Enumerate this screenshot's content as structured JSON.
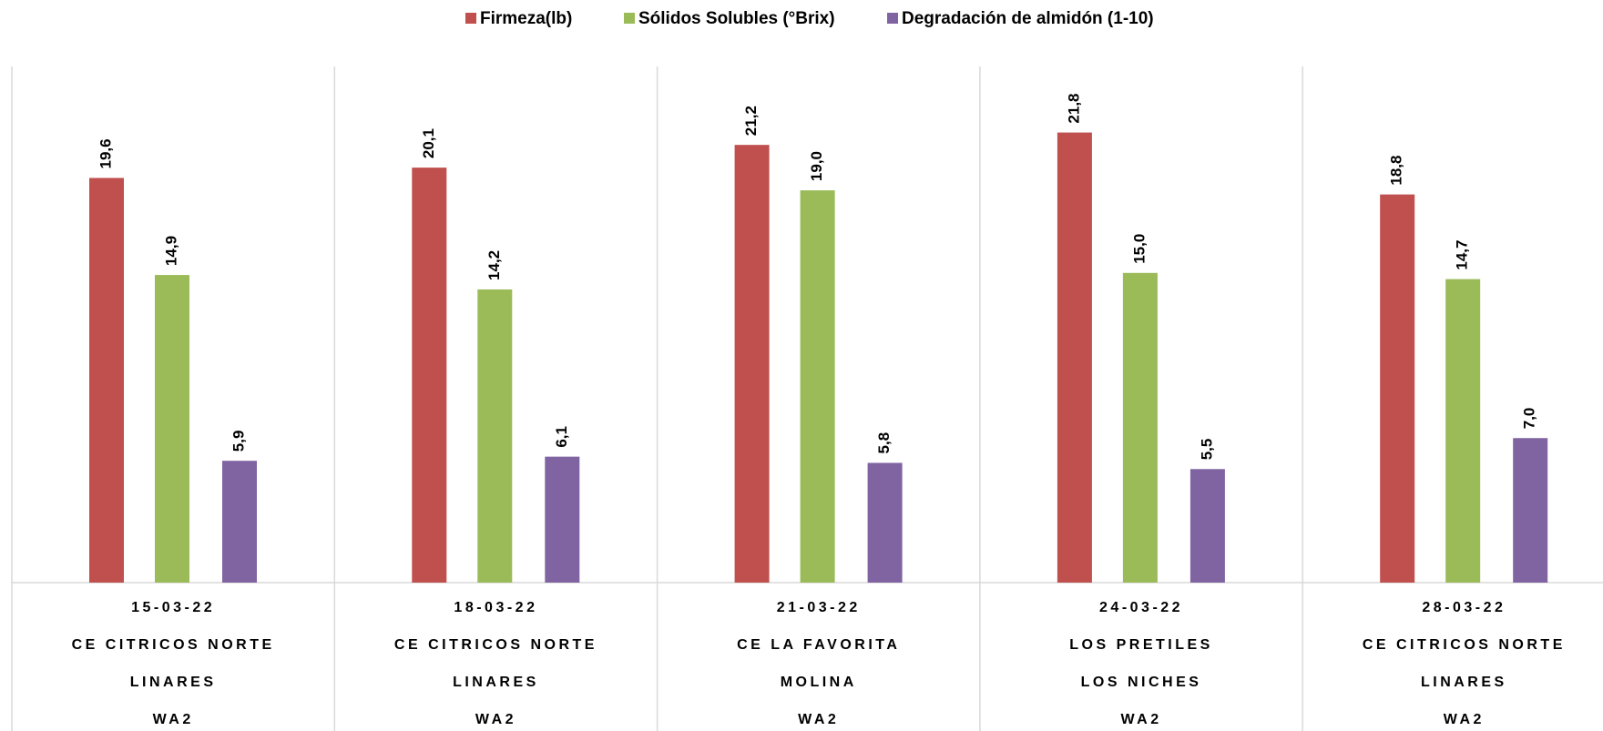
{
  "chart_data": {
    "type": "bar",
    "categories": [
      [
        "15-03-22",
        "CE CITRICOS NORTE",
        "LINARES",
        "WA2"
      ],
      [
        "18-03-22",
        "CE CITRICOS NORTE",
        "LINARES",
        "WA2"
      ],
      [
        "21-03-22",
        "CE LA FAVORITA",
        "MOLINA",
        "WA2"
      ],
      [
        "24-03-22",
        "LOS PRETILES",
        "LOS NICHES",
        "WA2"
      ],
      [
        "28-03-22",
        "CE CITRICOS NORTE",
        "LINARES",
        "WA2"
      ]
    ],
    "series": [
      {
        "name": "Firmeza(lb)",
        "color": "#c0504d",
        "values": [
          19.6,
          20.1,
          21.2,
          21.8,
          18.8
        ],
        "value_labels": [
          "19,6",
          "20,1",
          "21,2",
          "21,8",
          "18,8"
        ]
      },
      {
        "name": "Sólidos Solubles (°Brix)",
        "color": "#9bbb59",
        "values": [
          14.9,
          14.2,
          19.0,
          15.0,
          14.7
        ],
        "value_labels": [
          "14,9",
          "14,2",
          "19,0",
          "15,0",
          "14,7"
        ]
      },
      {
        "name": "Degradación de almidón (1-10)",
        "color": "#8064a2",
        "values": [
          5.9,
          6.1,
          5.8,
          5.5,
          7.0
        ],
        "value_labels": [
          "5,9",
          "6,1",
          "5,8",
          "5,5",
          "7,0"
        ]
      }
    ],
    "ylim": [
      0,
      25
    ],
    "legend": "top"
  }
}
